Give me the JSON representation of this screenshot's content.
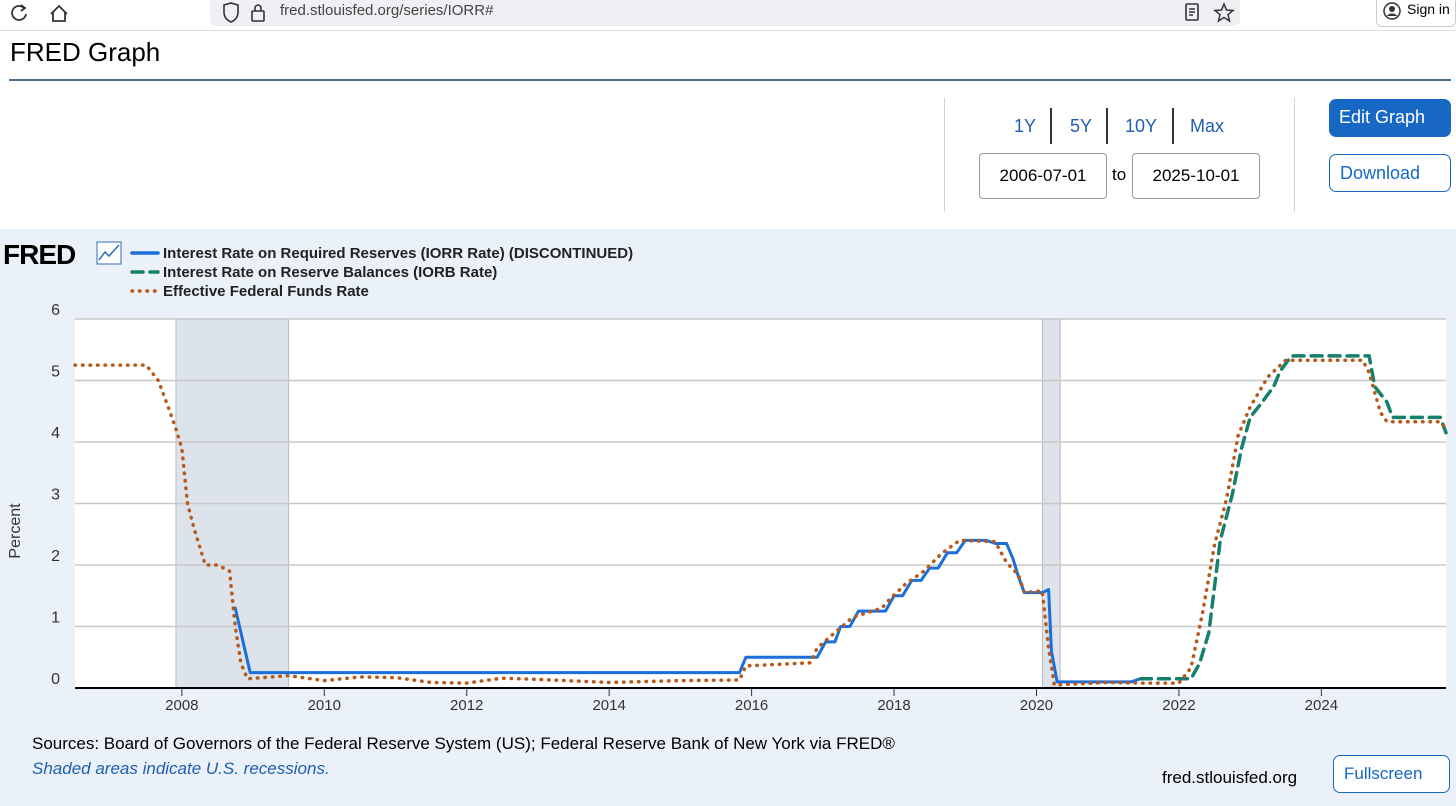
{
  "browser": {
    "url": "fred.stlouisfed.org/series/IORR#",
    "sign_in": "Sign in"
  },
  "header": {
    "title": "FRED Graph"
  },
  "controls": {
    "ranges": [
      "1Y",
      "5Y",
      "10Y",
      "Max"
    ],
    "start_date": "2006-07-01",
    "to": "to",
    "end_date": "2025-10-01",
    "edit_graph": "Edit Graph",
    "download": "Download"
  },
  "chart_data": {
    "type": "line",
    "logo": "FRED",
    "ylabel": "Percent",
    "xlim": [
      2006.5,
      2025.75
    ],
    "xticks": [
      2008,
      2010,
      2012,
      2014,
      2016,
      2018,
      2020,
      2022,
      2024
    ],
    "ylim": [
      0,
      6
    ],
    "yticks": [
      0,
      1,
      2,
      3,
      4,
      5,
      6
    ],
    "grid": true,
    "recessions": [
      [
        2007.917,
        2009.5
      ],
      [
        2020.083,
        2020.333
      ]
    ],
    "recession_color": "#dde3ea",
    "series": [
      {
        "name": "Interest Rate on Required Reserves (IORR Rate) (DISCONTINUED)",
        "color": "#1a6fdb",
        "style": "solid",
        "x": [
          2008.75,
          2008.96,
          2015.83,
          2015.92,
          2016.92,
          2017.04,
          2017.17,
          2017.25,
          2017.38,
          2017.5,
          2017.88,
          2018.0,
          2018.12,
          2018.25,
          2018.38,
          2018.5,
          2018.62,
          2018.75,
          2018.88,
          2019.0,
          2019.3,
          2019.42,
          2019.58,
          2019.67,
          2019.75,
          2019.83,
          2020.08,
          2020.17,
          2020.21,
          2020.29,
          2021.33,
          2021.46
        ],
        "values": [
          1.3,
          0.25,
          0.25,
          0.5,
          0.5,
          0.75,
          0.75,
          1.0,
          1.0,
          1.25,
          1.25,
          1.5,
          1.5,
          1.75,
          1.75,
          1.95,
          1.95,
          2.2,
          2.2,
          2.4,
          2.4,
          2.35,
          2.35,
          2.1,
          1.8,
          1.55,
          1.55,
          1.6,
          0.6,
          0.1,
          0.1,
          0.15
        ]
      },
      {
        "name": "Interest Rate on Reserve Balances (IORB Rate)",
        "color": "#17806d",
        "style": "dashed",
        "x": [
          2021.46,
          2022.17,
          2022.29,
          2022.42,
          2022.5,
          2022.58,
          2022.75,
          2022.88,
          2023.0,
          2023.17,
          2023.33,
          2023.42,
          2023.58,
          2024.67,
          2024.75,
          2024.92,
          2025.0,
          2025.67,
          2025.75
        ],
        "values": [
          0.15,
          0.15,
          0.4,
          0.9,
          1.65,
          2.4,
          3.15,
          3.9,
          4.4,
          4.65,
          4.9,
          5.15,
          5.4,
          5.4,
          4.9,
          4.65,
          4.4,
          4.4,
          4.15
        ]
      },
      {
        "name": "Effective Federal Funds Rate",
        "color": "#b8581a",
        "style": "dotted",
        "x": [
          2006.5,
          2007.5,
          2007.67,
          2007.83,
          2007.92,
          2008.0,
          2008.08,
          2008.17,
          2008.25,
          2008.33,
          2008.5,
          2008.67,
          2008.75,
          2008.83,
          2008.92,
          2009.5,
          2010.0,
          2010.5,
          2011.0,
          2011.5,
          2012.0,
          2012.5,
          2013.0,
          2014.0,
          2015.0,
          2015.83,
          2015.92,
          2016.83,
          2016.92,
          2017.17,
          2017.42,
          2017.83,
          2017.92,
          2018.17,
          2018.42,
          2018.67,
          2018.92,
          2019.42,
          2019.58,
          2019.75,
          2019.83,
          2020.08,
          2020.17,
          2020.25,
          2021.0,
          2021.5,
          2022.0,
          2022.17,
          2022.33,
          2022.5,
          2022.67,
          2022.83,
          2023.0,
          2023.25,
          2023.5,
          2024.58,
          2024.67,
          2024.83,
          2024.92,
          2025.67,
          2025.75
        ],
        "values": [
          5.25,
          5.25,
          5.0,
          4.5,
          4.2,
          3.9,
          3.0,
          2.6,
          2.3,
          2.0,
          2.0,
          1.9,
          1.0,
          0.4,
          0.15,
          0.2,
          0.12,
          0.18,
          0.17,
          0.09,
          0.08,
          0.16,
          0.14,
          0.09,
          0.12,
          0.13,
          0.36,
          0.41,
          0.65,
          0.9,
          1.15,
          1.3,
          1.42,
          1.7,
          1.9,
          2.19,
          2.4,
          2.38,
          2.04,
          1.83,
          1.55,
          1.58,
          0.65,
          0.05,
          0.09,
          0.08,
          0.08,
          0.33,
          1.21,
          2.33,
          3.08,
          4.1,
          4.57,
          5.06,
          5.33,
          5.33,
          5.13,
          4.48,
          4.33,
          4.33,
          4.22
        ]
      }
    ]
  },
  "footer": {
    "sources": "Sources: Board of Governors of the Federal Reserve System (US); Federal Reserve Bank of New York via FRED®",
    "recession_note": "Shaded areas indicate U.S. recessions.",
    "site": "fred.stlouisfed.org",
    "fullscreen": "Fullscreen"
  }
}
